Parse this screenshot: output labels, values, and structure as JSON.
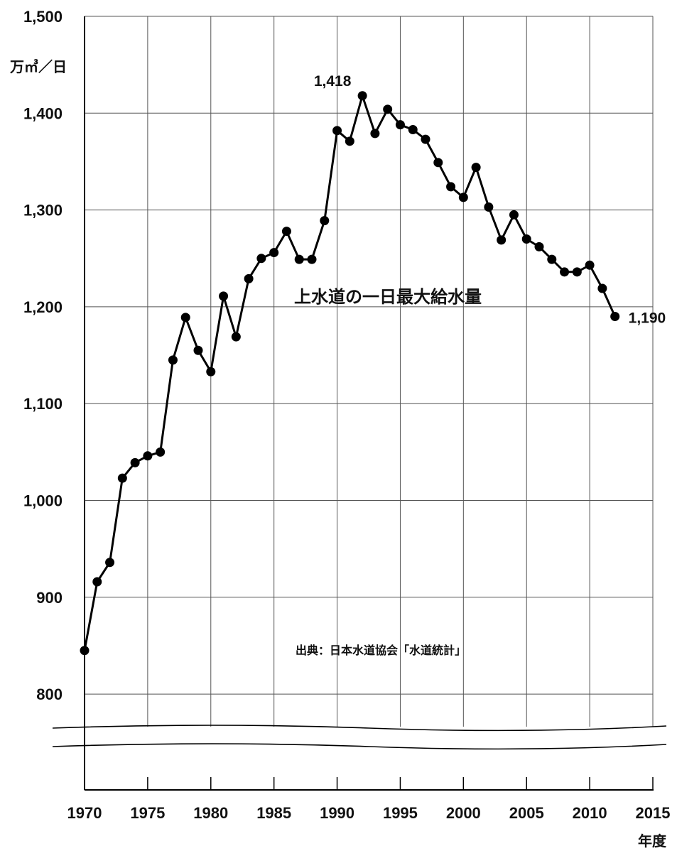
{
  "chart_data": {
    "type": "line",
    "title": "上水道の一日最大給水量",
    "ylabel": "万㎥／日",
    "xlabel": "年度",
    "source": "出典：日本水道協会「水道統計」",
    "ylim": [
      800,
      1500
    ],
    "xlim": [
      1970,
      2015
    ],
    "y_ticks": [
      "800",
      "900",
      "1,000",
      "1,100",
      "1,200",
      "1,300",
      "1,400",
      "1,500"
    ],
    "x_ticks": [
      "1970",
      "1975",
      "1980",
      "1985",
      "1990",
      "1995",
      "2000",
      "2005",
      "2010",
      "2015"
    ],
    "axis_break": true,
    "grid": true,
    "annotations": [
      {
        "year": 1992,
        "text": "1,418"
      },
      {
        "year": 2012,
        "text": "1,190"
      }
    ],
    "x": [
      1970,
      1971,
      1972,
      1973,
      1974,
      1975,
      1976,
      1977,
      1978,
      1979,
      1980,
      1981,
      1982,
      1983,
      1984,
      1985,
      1986,
      1987,
      1988,
      1989,
      1990,
      1991,
      1992,
      1993,
      1994,
      1995,
      1996,
      1997,
      1998,
      1999,
      2000,
      2001,
      2002,
      2003,
      2004,
      2005,
      2006,
      2007,
      2008,
      2009,
      2010,
      2011,
      2012
    ],
    "values": [
      845,
      916,
      936,
      1023,
      1039,
      1046,
      1050,
      1145,
      1189,
      1155,
      1133,
      1211,
      1169,
      1229,
      1250,
      1256,
      1278,
      1249,
      1249,
      1289,
      1382,
      1371,
      1418,
      1379,
      1404,
      1388,
      1383,
      1373,
      1349,
      1324,
      1313,
      1344,
      1303,
      1269,
      1295,
      1270,
      1262,
      1249,
      1236,
      1236,
      1243,
      1219,
      1190
    ],
    "colors": {
      "line": "#000000",
      "grid": "#555555"
    }
  }
}
